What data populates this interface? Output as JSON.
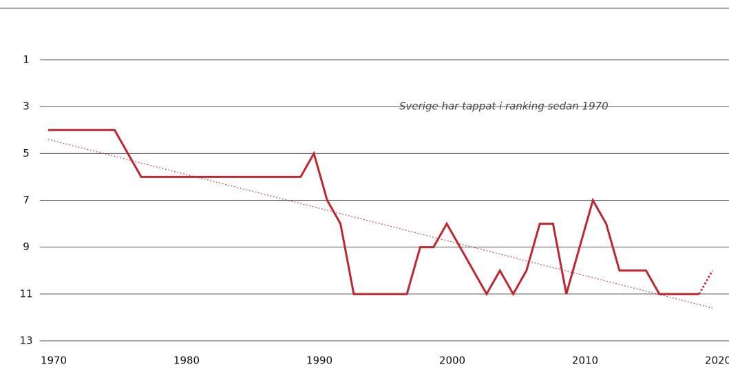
{
  "chart_data": {
    "type": "line",
    "annotation": "Sverige har tappat i ranking sedan 1970",
    "x": [
      1970,
      1971,
      1972,
      1973,
      1974,
      1975,
      1976,
      1977,
      1978,
      1979,
      1980,
      1981,
      1982,
      1983,
      1984,
      1985,
      1986,
      1987,
      1988,
      1989,
      1990,
      1991,
      1992,
      1993,
      1994,
      1995,
      1996,
      1997,
      1998,
      1999,
      2000,
      2001,
      2002,
      2003,
      2004,
      2005,
      2006,
      2007,
      2008,
      2009,
      2010,
      2011,
      2012,
      2013,
      2014,
      2015,
      2016,
      2017,
      2018,
      2019,
      2020
    ],
    "series": [
      {
        "color": "#c0262d",
        "style": "solid",
        "values": [
          4,
          4,
          4,
          4,
          4,
          4,
          5,
          6,
          6,
          6,
          6,
          6,
          6,
          6,
          6,
          6,
          6,
          6,
          6,
          6,
          5,
          7,
          8,
          11,
          11,
          11,
          11,
          11,
          9,
          9,
          8,
          9,
          10,
          11,
          10,
          11,
          10,
          8,
          8,
          11,
          9,
          7,
          8,
          10,
          10,
          10,
          11,
          11,
          11,
          11,
          null
        ]
      },
      {
        "color": "#c0262d",
        "style": "dotted",
        "values": [
          null,
          null,
          null,
          null,
          null,
          null,
          null,
          null,
          null,
          null,
          null,
          null,
          null,
          null,
          null,
          null,
          null,
          null,
          null,
          null,
          null,
          null,
          null,
          null,
          null,
          null,
          null,
          null,
          null,
          null,
          null,
          null,
          null,
          null,
          null,
          null,
          null,
          null,
          null,
          null,
          null,
          null,
          null,
          null,
          null,
          null,
          null,
          null,
          null,
          11,
          10
        ]
      }
    ],
    "trend": {
      "color": "#c0262d",
      "x": [
        1970,
        2020
      ],
      "values": [
        4.4,
        11.6
      ]
    },
    "xlim": [
      1970,
      2020
    ],
    "xticks": [
      1970,
      1980,
      1990,
      2000,
      2010,
      2020
    ],
    "ylim": [
      13,
      1
    ],
    "yticks": [
      1,
      3,
      5,
      7,
      9,
      11,
      13
    ],
    "y_inverted": true,
    "grid": true
  }
}
